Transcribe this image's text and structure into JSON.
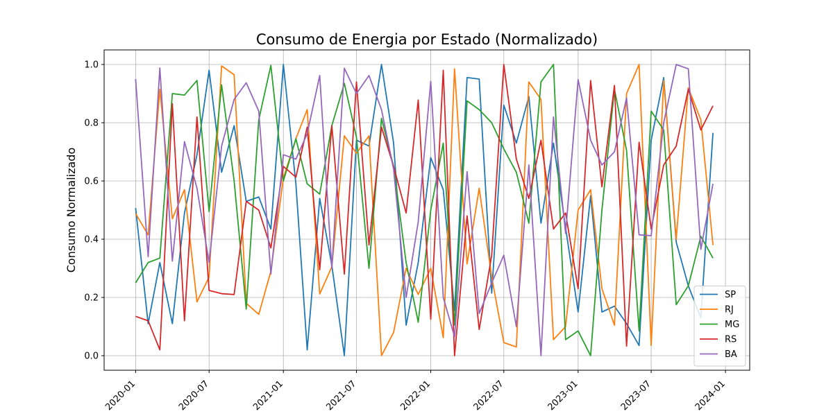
{
  "chart_data": {
    "type": "line",
    "title": "Consumo de Energia por Estado (Normalizado)",
    "xlabel": "",
    "ylabel": "Consumo Normalizado",
    "x": [
      "2020-01",
      "2020-02",
      "2020-03",
      "2020-04",
      "2020-05",
      "2020-06",
      "2020-07",
      "2020-08",
      "2020-09",
      "2020-10",
      "2020-11",
      "2020-12",
      "2021-01",
      "2021-02",
      "2021-03",
      "2021-04",
      "2021-05",
      "2021-06",
      "2021-07",
      "2021-08",
      "2021-09",
      "2021-10",
      "2021-11",
      "2021-12",
      "2022-01",
      "2022-02",
      "2022-03",
      "2022-04",
      "2022-05",
      "2022-06",
      "2022-07",
      "2022-08",
      "2022-09",
      "2022-10",
      "2022-11",
      "2022-12",
      "2023-01",
      "2023-02",
      "2023-03",
      "2023-04",
      "2023-05",
      "2023-06",
      "2023-07",
      "2023-08",
      "2023-09",
      "2023-10",
      "2023-11",
      "2023-12"
    ],
    "x_ticks": [
      "2020-01",
      "2020-07",
      "2021-01",
      "2021-07",
      "2022-01",
      "2022-07",
      "2023-01",
      "2023-07",
      "2024-01"
    ],
    "xlim": [
      "2019-10-15",
      "2024-03-01"
    ],
    "ylim": [
      -0.05,
      1.05
    ],
    "y_ticks": [
      0.0,
      0.2,
      0.4,
      0.6,
      0.8,
      1.0
    ],
    "grid": true,
    "legend_position": "lower-right",
    "series": [
      {
        "name": "SP",
        "color": "#1f77b4",
        "values": [
          0.507,
          0.11,
          0.32,
          0.11,
          0.49,
          0.69,
          0.98,
          0.63,
          0.79,
          0.53,
          0.545,
          0.435,
          1.0,
          0.59,
          0.02,
          0.54,
          0.31,
          0.0,
          0.74,
          0.72,
          1.0,
          0.73,
          0.105,
          0.32,
          0.68,
          0.57,
          0.155,
          0.955,
          0.95,
          0.215,
          0.86,
          0.73,
          0.89,
          0.455,
          0.73,
          0.44,
          0.15,
          0.55,
          0.15,
          0.17,
          0.11,
          0.035,
          0.74,
          0.955,
          0.39,
          0.24,
          0.13,
          0.765
        ]
      },
      {
        "name": "RJ",
        "color": "#ff7f0e",
        "values": [
          0.488,
          0.415,
          0.915,
          0.47,
          0.57,
          0.185,
          0.27,
          0.995,
          0.965,
          0.18,
          0.142,
          0.29,
          0.61,
          0.745,
          0.845,
          0.212,
          0.305,
          0.755,
          0.695,
          0.755,
          0.0,
          0.08,
          0.3,
          0.21,
          0.3,
          0.062,
          0.985,
          0.315,
          0.575,
          0.27,
          0.045,
          0.03,
          0.94,
          0.88,
          0.055,
          0.1,
          0.5,
          0.57,
          0.23,
          0.105,
          0.9,
          1.0,
          0.035,
          0.945,
          0.4,
          0.92,
          0.81,
          0.38
        ]
      },
      {
        "name": "MG",
        "color": "#2ca02c",
        "values": [
          0.25,
          0.32,
          0.335,
          0.9,
          0.895,
          0.945,
          0.495,
          0.93,
          0.6,
          0.16,
          0.81,
          0.997,
          0.6,
          0.745,
          0.59,
          0.555,
          0.79,
          0.935,
          0.75,
          0.3,
          0.815,
          0.65,
          0.32,
          0.115,
          0.5,
          0.73,
          0.105,
          0.875,
          0.845,
          0.8,
          0.71,
          0.63,
          0.455,
          0.94,
          1.0,
          0.055,
          0.085,
          0.0,
          0.5,
          0.915,
          0.705,
          0.085,
          0.84,
          0.775,
          0.175,
          0.24,
          0.41,
          0.335
        ]
      },
      {
        "name": "RS",
        "color": "#d62728",
        "values": [
          0.135,
          0.12,
          0.02,
          0.865,
          0.12,
          0.82,
          0.224,
          0.213,
          0.21,
          0.53,
          0.5,
          0.37,
          0.65,
          0.613,
          0.785,
          0.295,
          0.79,
          0.28,
          0.94,
          0.38,
          0.785,
          0.65,
          0.49,
          0.878,
          0.125,
          0.98,
          0.0,
          0.48,
          0.09,
          0.345,
          1.0,
          0.675,
          0.54,
          0.74,
          0.435,
          0.49,
          0.23,
          0.945,
          0.58,
          0.928,
          0.033,
          0.733,
          0.435,
          0.655,
          0.72,
          0.915,
          0.775,
          0.858
        ]
      },
      {
        "name": "BA",
        "color": "#9467bd",
        "values": [
          0.95,
          0.34,
          0.988,
          0.325,
          0.735,
          0.575,
          0.32,
          0.72,
          0.88,
          0.937,
          0.84,
          0.28,
          0.69,
          0.675,
          0.762,
          0.962,
          0.3,
          0.987,
          0.9,
          0.962,
          0.845,
          0.64,
          0.2,
          0.46,
          0.942,
          0.2,
          0.065,
          0.632,
          0.145,
          0.25,
          0.345,
          0.1,
          0.655,
          0.0,
          0.82,
          0.42,
          0.948,
          0.74,
          0.655,
          0.7,
          0.885,
          0.415,
          0.412,
          0.8,
          1.0,
          0.985,
          0.365,
          0.59
        ]
      }
    ]
  }
}
